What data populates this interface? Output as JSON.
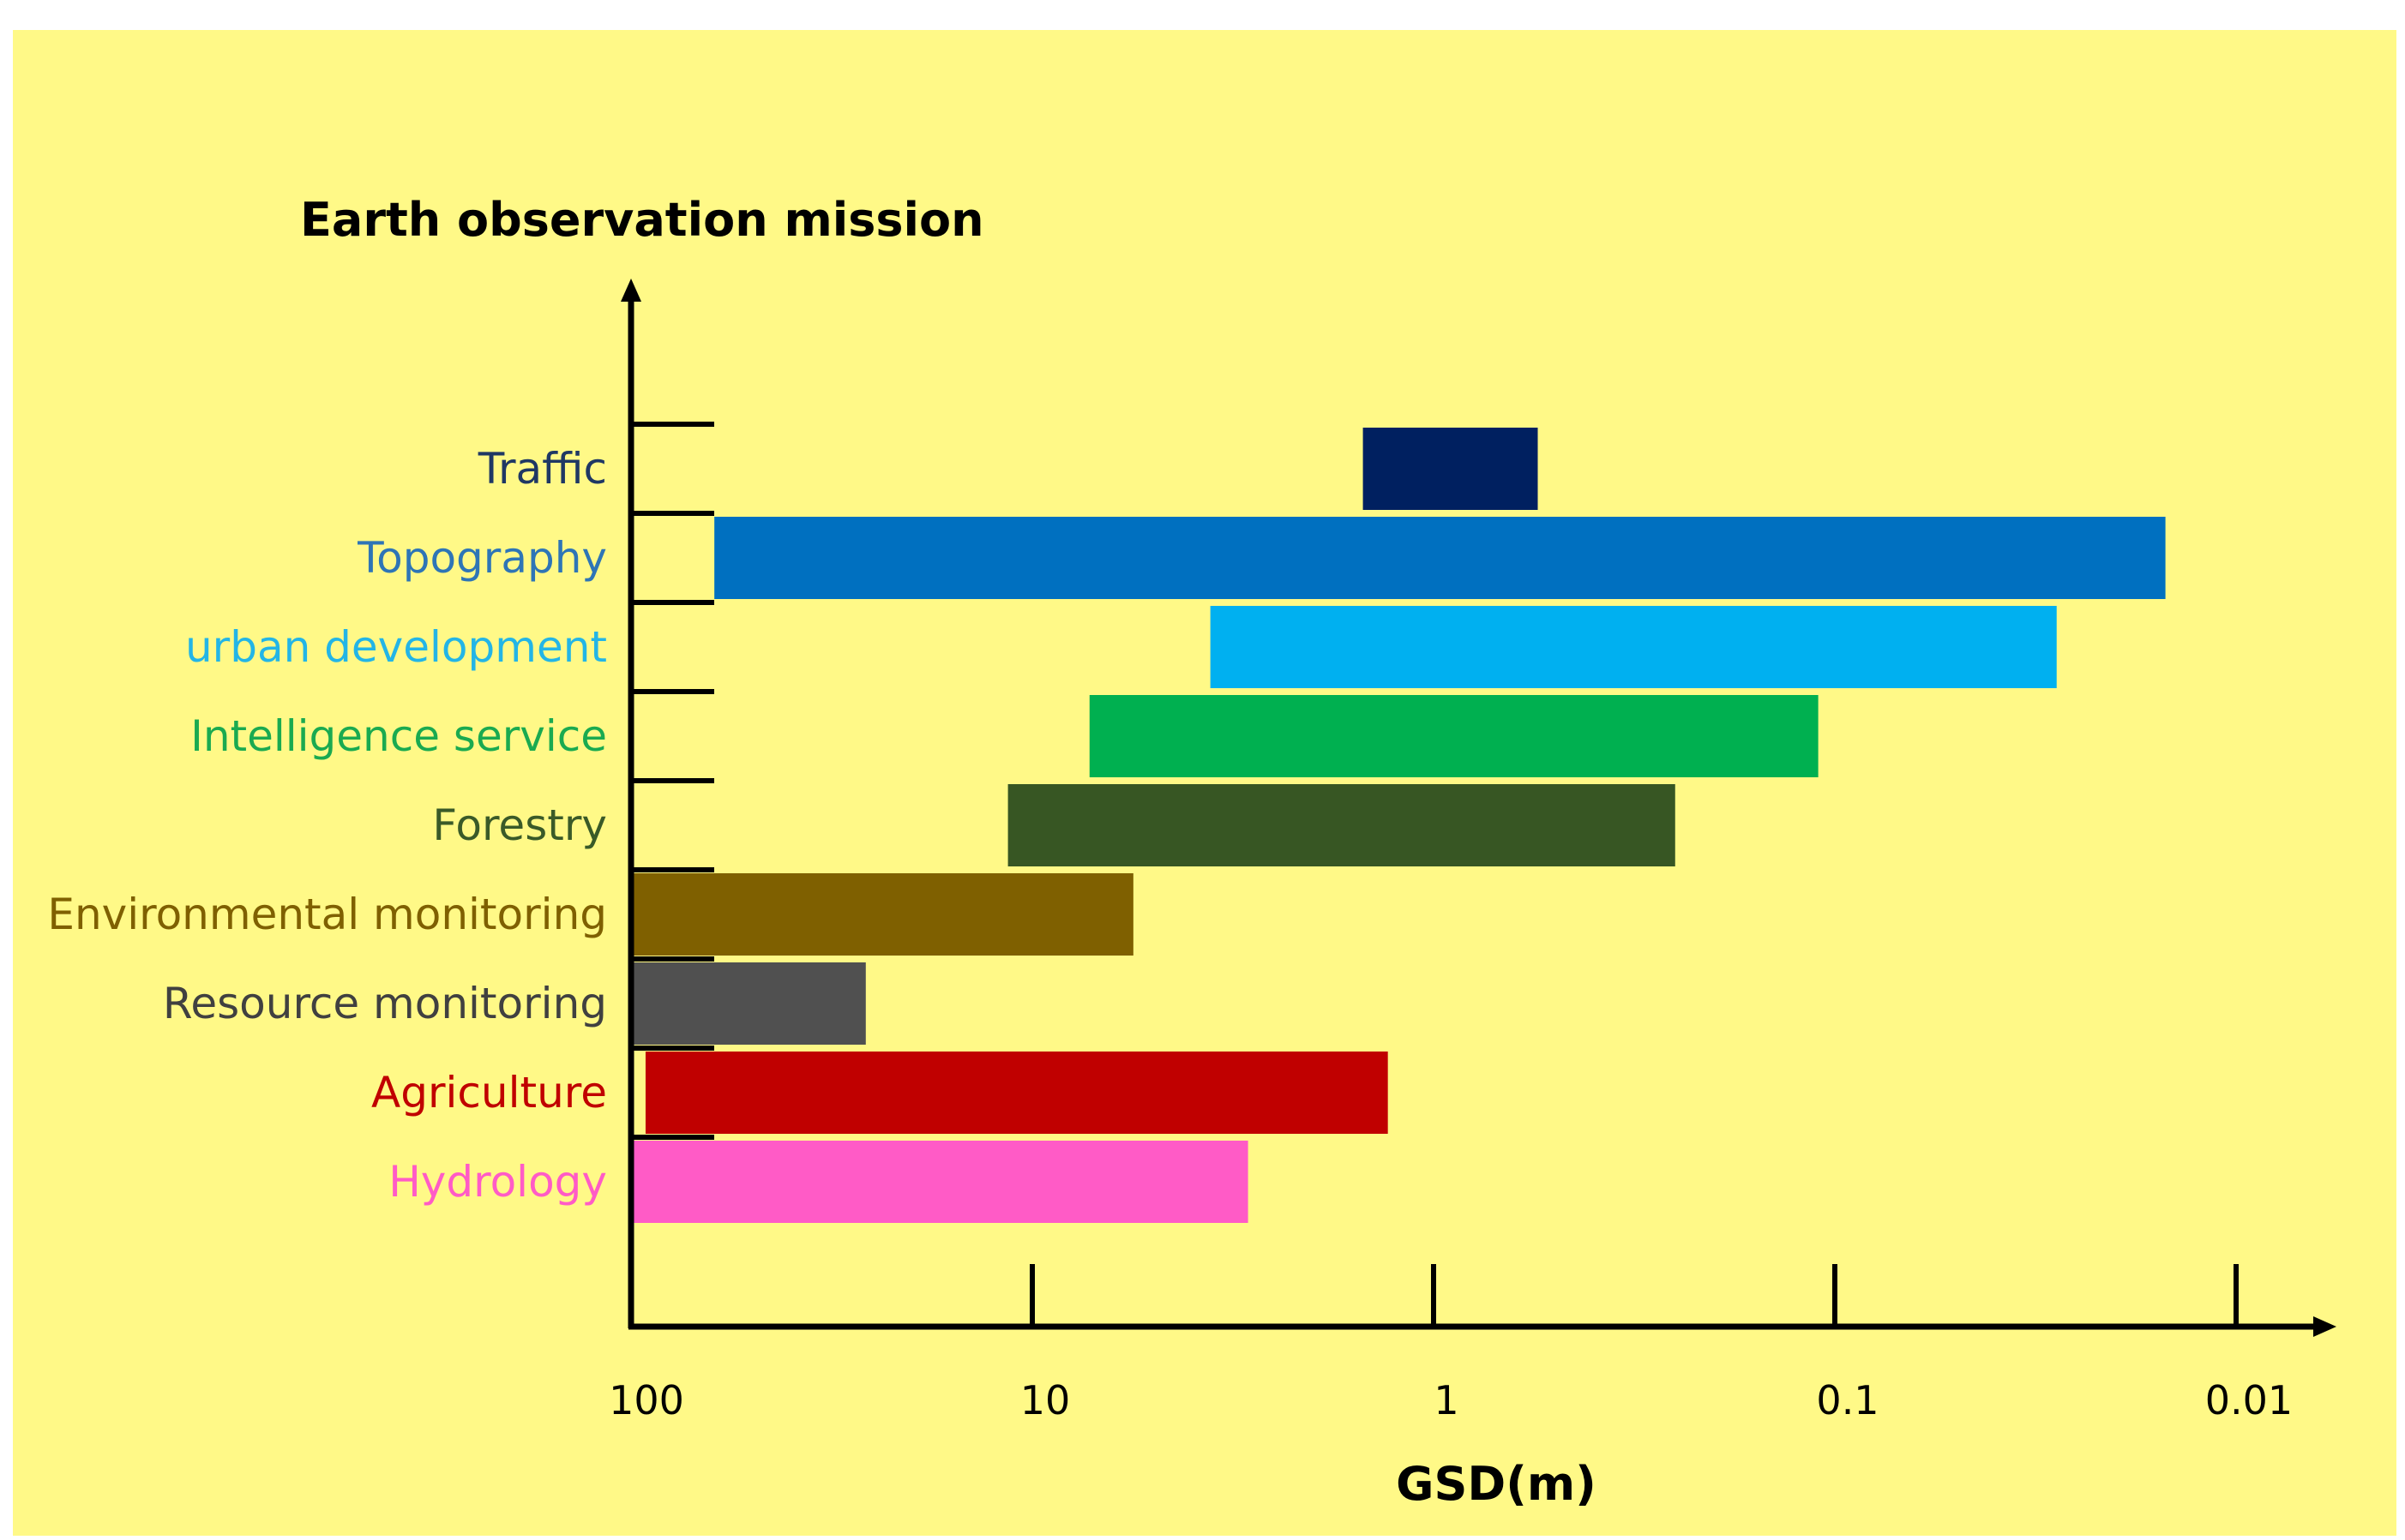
{
  "chart_data": {
    "type": "bar",
    "orientation": "horizontal",
    "title": "Earth observation mission",
    "xlabel": "GSD(m)",
    "ylabel": "",
    "x_scale": "log",
    "x_reversed": true,
    "xlim": [
      100,
      0.01
    ],
    "x_ticks": [
      {
        "value": 100,
        "label": "100"
      },
      {
        "value": 10,
        "label": "10"
      },
      {
        "value": 1,
        "label": "1"
      },
      {
        "value": 0.1,
        "label": "0.1"
      },
      {
        "value": 0.01,
        "label": "0.01"
      }
    ],
    "background_color": "#fff987",
    "categories": [
      {
        "name": "Traffic",
        "min_gsd": 0.55,
        "max_gsd": 1.5,
        "color": "#002060",
        "label_color": "#1f3864"
      },
      {
        "name": "Topography",
        "min_gsd": 0.015,
        "max_gsd": 62,
        "color": "#0070c0",
        "label_color": "#2e75b6"
      },
      {
        "name": "urban development",
        "min_gsd": 0.028,
        "max_gsd": 3.6,
        "color": "#00b0f0",
        "label_color": "#23b5e6"
      },
      {
        "name": "Intelligence service",
        "min_gsd": 0.11,
        "max_gsd": 7.2,
        "color": "#00b050",
        "label_color": "#1aaa50"
      },
      {
        "name": "Forestry",
        "min_gsd": 0.25,
        "max_gsd": 11.5,
        "color": "#375623",
        "label_color": "#3a5a28"
      },
      {
        "name": "Environmental monitoring",
        "min_gsd": 5.6,
        "max_gsd": 100,
        "color": "#7f6000",
        "label_color": "#7f6000"
      },
      {
        "name": "Resource monitoring",
        "min_gsd": 26,
        "max_gsd": 100,
        "color": "#505050",
        "label_color": "#404040"
      },
      {
        "name": "Agriculture",
        "min_gsd": 1.3,
        "max_gsd": 92,
        "color": "#c00000",
        "label_color": "#c00000"
      },
      {
        "name": "Hydrology",
        "min_gsd": 2.9,
        "max_gsd": 100,
        "color": "#ff5bc6",
        "label_color": "#ff5bc6"
      }
    ]
  }
}
